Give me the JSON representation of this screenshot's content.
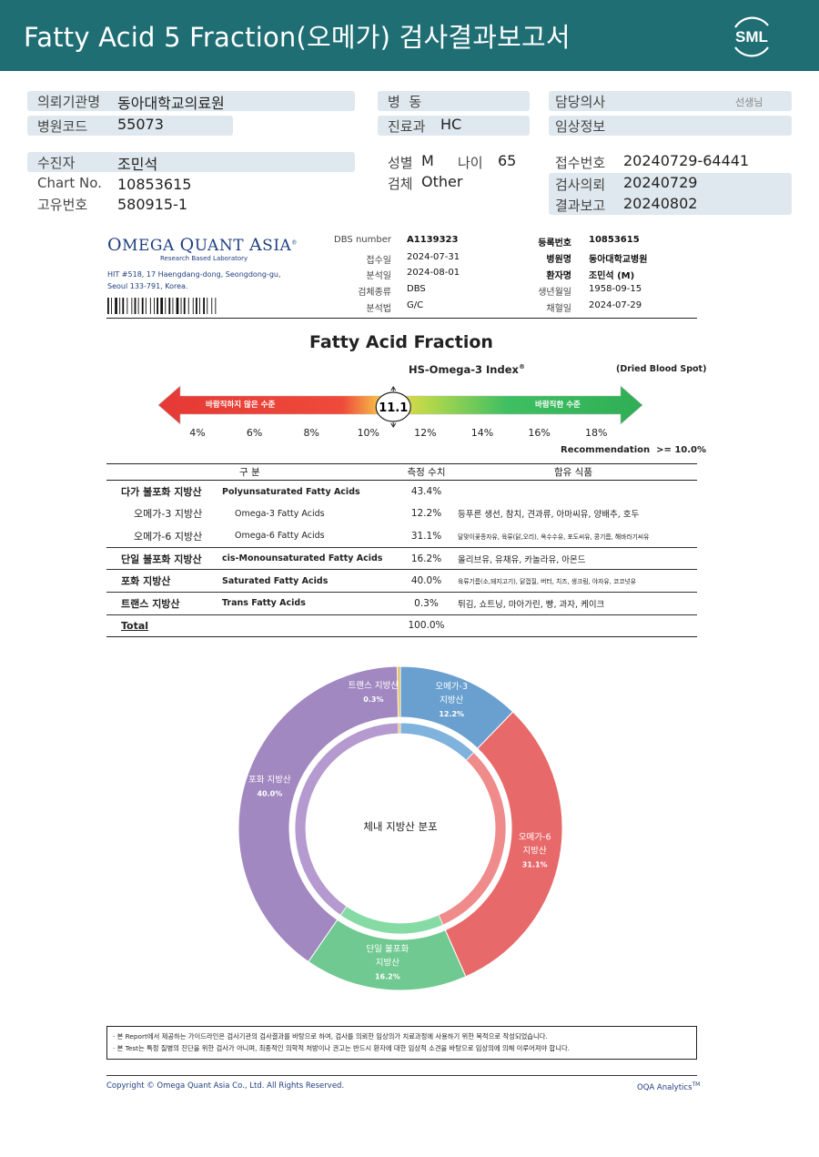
{
  "header": {
    "title": "Fatty Acid 5 Fraction(오메가) 검사결과보고서",
    "logo_text": "SML"
  },
  "info": {
    "institution_label": "의뢰기관명",
    "institution": "동아대학교의료원",
    "hospital_code_label": "병원코드",
    "hospital_code": "55073",
    "ward_label": "병  동",
    "ward": "",
    "dept_label": "진료과",
    "dept": "HC",
    "doctor_label": "담당의사",
    "doctor": "선생님",
    "clinical_label": "임상정보",
    "clinical": "",
    "patient_label": "수진자",
    "patient": "조민석",
    "chart_label": "Chart No.",
    "chart": "10853615",
    "id_label": "고유번호",
    "id": "580915-1",
    "sex_label": "성별",
    "sex": "M",
    "age_label": "나이",
    "age": "65",
    "specimen_label": "검체",
    "specimen": "Other",
    "receipt_label": "접수번호",
    "receipt": "20240729-64441",
    "request_label": "검사의뢰",
    "request": "20240729",
    "report_label": "결과보고",
    "report": "20240802"
  },
  "lab": {
    "name_parts": [
      "O",
      "MEGA ",
      "Q",
      "UANT ",
      "A",
      "SIA"
    ],
    "tagline": "Research Based Laboratory",
    "address1": "HIT #518, 17 Haengdang-dong, Seongdong-gu,",
    "address2": "Seoul 133-791, Korea."
  },
  "meta": {
    "dbs_label": "DBS number",
    "dbs": "A1139323",
    "received_label": "접수일",
    "received": "2024-07-31",
    "analyzed_label": "분석일",
    "analyzed": "2024-08-01",
    "sample_label": "검체종류",
    "sample": "DBS",
    "method_label": "분석법",
    "method": "G/C",
    "reg_label": "등록번호",
    "reg": "10853615",
    "hosp_label": "병원명",
    "hosp": "동아대학교병원",
    "pt_label": "환자명",
    "pt": "조민석 (M)",
    "dob_label": "생년월일",
    "dob": "1958-09-15",
    "draw_label": "채혈일",
    "draw": "2024-07-29"
  },
  "fraction": {
    "title": "Fatty Acid Fraction",
    "index_title": "HS-Omega-3 Index",
    "index_mark": "®",
    "sample_note": "(Dried Blood Spot)",
    "bad_label": "바람직하지 않은 수준",
    "good_label": "바람직한 수준",
    "value": 11.1,
    "value_text": "11.1",
    "scale_min": 3,
    "scale_max": 19,
    "ticks": [
      "4%",
      "6%",
      "8%",
      "10%",
      "12%",
      "14%",
      "16%",
      "18%"
    ],
    "tick_values": [
      4,
      6,
      8,
      10,
      12,
      14,
      16,
      18
    ],
    "recommendation": "Recommendation  >= 10.0%"
  },
  "table": {
    "headers": [
      "구 분",
      "측정 수치",
      "함유 식품"
    ],
    "rows": [
      {
        "kr": "다가 불포화 지방산",
        "en": "Polyunsaturated Fatty Acids",
        "val": "43.4%",
        "food": ""
      },
      {
        "kr": "오메가-3 지방산",
        "en": "Omega-3 Fatty Acids",
        "val": "12.2%",
        "food": "등푸른 생선, 참치, 견과류, 아마씨유, 양배추, 호두"
      },
      {
        "kr": "오메가-6 지방산",
        "en": "Omega-6 Fatty Acids",
        "val": "31.1%",
        "food": "달맞이꽃종자유, 육류(닭,오리), 옥수수유, 포도씨유, 콩기름, 해바라기씨유"
      },
      {
        "kr": "단일 불포화 지방산",
        "en": "cis-Monounsaturated Fatty Acids",
        "val": "16.2%",
        "food": "올리브유, 유채유, 카놀라유, 아몬드"
      },
      {
        "kr": "포화 지방산",
        "en": "Saturated Fatty Acids",
        "val": "40.0%",
        "food": "육류기름(소,돼지고기), 닭껍질, 버터, 치즈, 생크림, 야자유, 코코넛유"
      },
      {
        "kr": "트랜스 지방산",
        "en": "Trans Fatty Acids",
        "val": "0.3%",
        "food": "튀김, 쇼트닝, 마아가린, 빵, 과자, 케이크"
      },
      {
        "kr": "Total",
        "en": "",
        "val": "100.0%",
        "food": ""
      }
    ]
  },
  "chart_data": {
    "type": "pie",
    "title": "체내 지방산 분포",
    "outer": {
      "categories": [
        "오메가-3 지방산",
        "오메가-6 지방산",
        "단일 불포화 지방산",
        "포화 지방산",
        "트랜스 지방산"
      ],
      "values": [
        12.2,
        31.1,
        16.2,
        40.0,
        0.3
      ],
      "labels_line1": [
        "오메가-3",
        "오메가-6",
        "단일 불포화",
        "포화 지방산",
        "트랜스 지방산"
      ],
      "labels_line2": [
        "지방산",
        "지방산",
        "지방산",
        "",
        ""
      ],
      "labels_pct": [
        "12.2%",
        "31.1%",
        "16.2%",
        "40.0%",
        "0.3%"
      ],
      "colors": [
        "#6aa0cf",
        "#e8696a",
        "#70c990",
        "#a288c0",
        "#e3ba4f"
      ]
    },
    "inner": {
      "values": [
        12.2,
        31.1,
        16.2,
        40.0,
        0.3
      ],
      "colors": [
        "#7fb2dc",
        "#ef8b8b",
        "#86dba4",
        "#b59ad0",
        "#e3ba4f"
      ]
    }
  },
  "notes": [
    "· 본 Report에서 제공하는 가이드라인은 검사기관의 검사결과를 바탕으로 하여, 검사를 의뢰한 임상의가 치료과정에 사용하기 위한 목적으로 작성되었습니다.",
    "· 본 Test는 특정 질병의 진단을 위한 검사가 아니며, 최종적인 의학적 처방이나 권고는 반드시 환자에 대한 임상적 소견을 바탕으로 임상의에 의해 이루어져야 합니다."
  ],
  "footer": {
    "copyright": "Copyright © Omega Quant Asia Co., Ltd.  All Rights Reserved.",
    "brand": "OQA Analytics",
    "brand_mark": "TM"
  }
}
